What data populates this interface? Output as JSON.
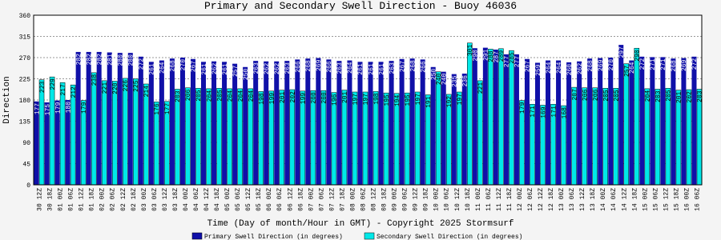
{
  "chart_data": {
    "type": "bar",
    "title": "Primary and Secondary Swell Direction - Buoy 46036",
    "x_label": "Time (Day of month/Hour in GMT) - Copyright 2025 Stormsurf",
    "y_label": "Direction",
    "categories": [
      "30 12Z",
      "30 18Z",
      "01 00Z",
      "01 06Z",
      "01 12Z",
      "01 18Z",
      "02 00Z",
      "02 06Z",
      "02 12Z",
      "02 18Z",
      "03 00Z",
      "03 06Z",
      "03 12Z",
      "03 18Z",
      "04 00Z",
      "04 06Z",
      "04 12Z",
      "04 18Z",
      "05 00Z",
      "05 06Z",
      "05 12Z",
      "05 18Z",
      "06 00Z",
      "06 06Z",
      "06 12Z",
      "06 18Z",
      "07 00Z",
      "07 06Z",
      "07 12Z",
      "07 18Z",
      "08 00Z",
      "08 06Z",
      "08 12Z",
      "08 18Z",
      "09 00Z",
      "09 06Z",
      "09 12Z",
      "09 18Z",
      "10 00Z",
      "10 06Z",
      "10 12Z",
      "10 18Z",
      "11 00Z",
      "11 06Z",
      "11 12Z",
      "11 18Z",
      "12 00Z",
      "12 06Z",
      "12 12Z",
      "12 18Z",
      "13 00Z",
      "13 06Z",
      "13 12Z",
      "13 18Z",
      "14 00Z",
      "14 06Z",
      "14 12Z",
      "14 18Z",
      "15 00Z",
      "15 06Z",
      "15 12Z",
      "15 18Z",
      "16 00Z",
      "16 06Z"
    ],
    "series": [
      {
        "name": "Primary Swell Direction (in degrees)",
        "color": "#1010a8",
        "values": [
          177,
          175,
          179,
          180,
          282,
          282,
          282,
          281,
          280,
          280,
          272,
          261,
          264,
          268,
          270,
          267,
          261,
          262,
          261,
          257,
          250,
          263,
          262,
          262,
          263,
          266,
          268,
          269,
          266,
          263,
          264,
          261,
          261,
          261,
          263,
          267,
          268,
          266,
          250,
          240,
          235,
          236,
          290,
          291,
          287,
          277,
          277,
          267,
          259,
          264,
          264,
          260,
          262,
          268,
          269,
          270,
          297,
          264,
          272,
          271,
          271,
          268,
          269,
          272
        ]
      },
      {
        "name": "Secondary Swell Direction (in degrees)",
        "color": "#00e8e8",
        "values": [
          223,
          229,
          217,
          212,
          179,
          238,
          221,
          220,
          226,
          225,
          214,
          176,
          177,
          203,
          206,
          205,
          204,
          205,
          204,
          204,
          204,
          198,
          199,
          201,
          202,
          199,
          200,
          200,
          196,
          201,
          197,
          197,
          198,
          195,
          194,
          195,
          197,
          191,
          240,
          192,
          197,
          301,
          221,
          288,
          289,
          285,
          179,
          171,
          169,
          171,
          168,
          207,
          206,
          206,
          205,
          205,
          257,
          290,
          204,
          203,
          205,
          201,
          202,
          203
        ]
      }
    ],
    "ylim": [
      0,
      360
    ],
    "yticks": [
      0,
      45,
      90,
      135,
      180,
      225,
      270,
      315,
      360
    ],
    "grid": true
  }
}
